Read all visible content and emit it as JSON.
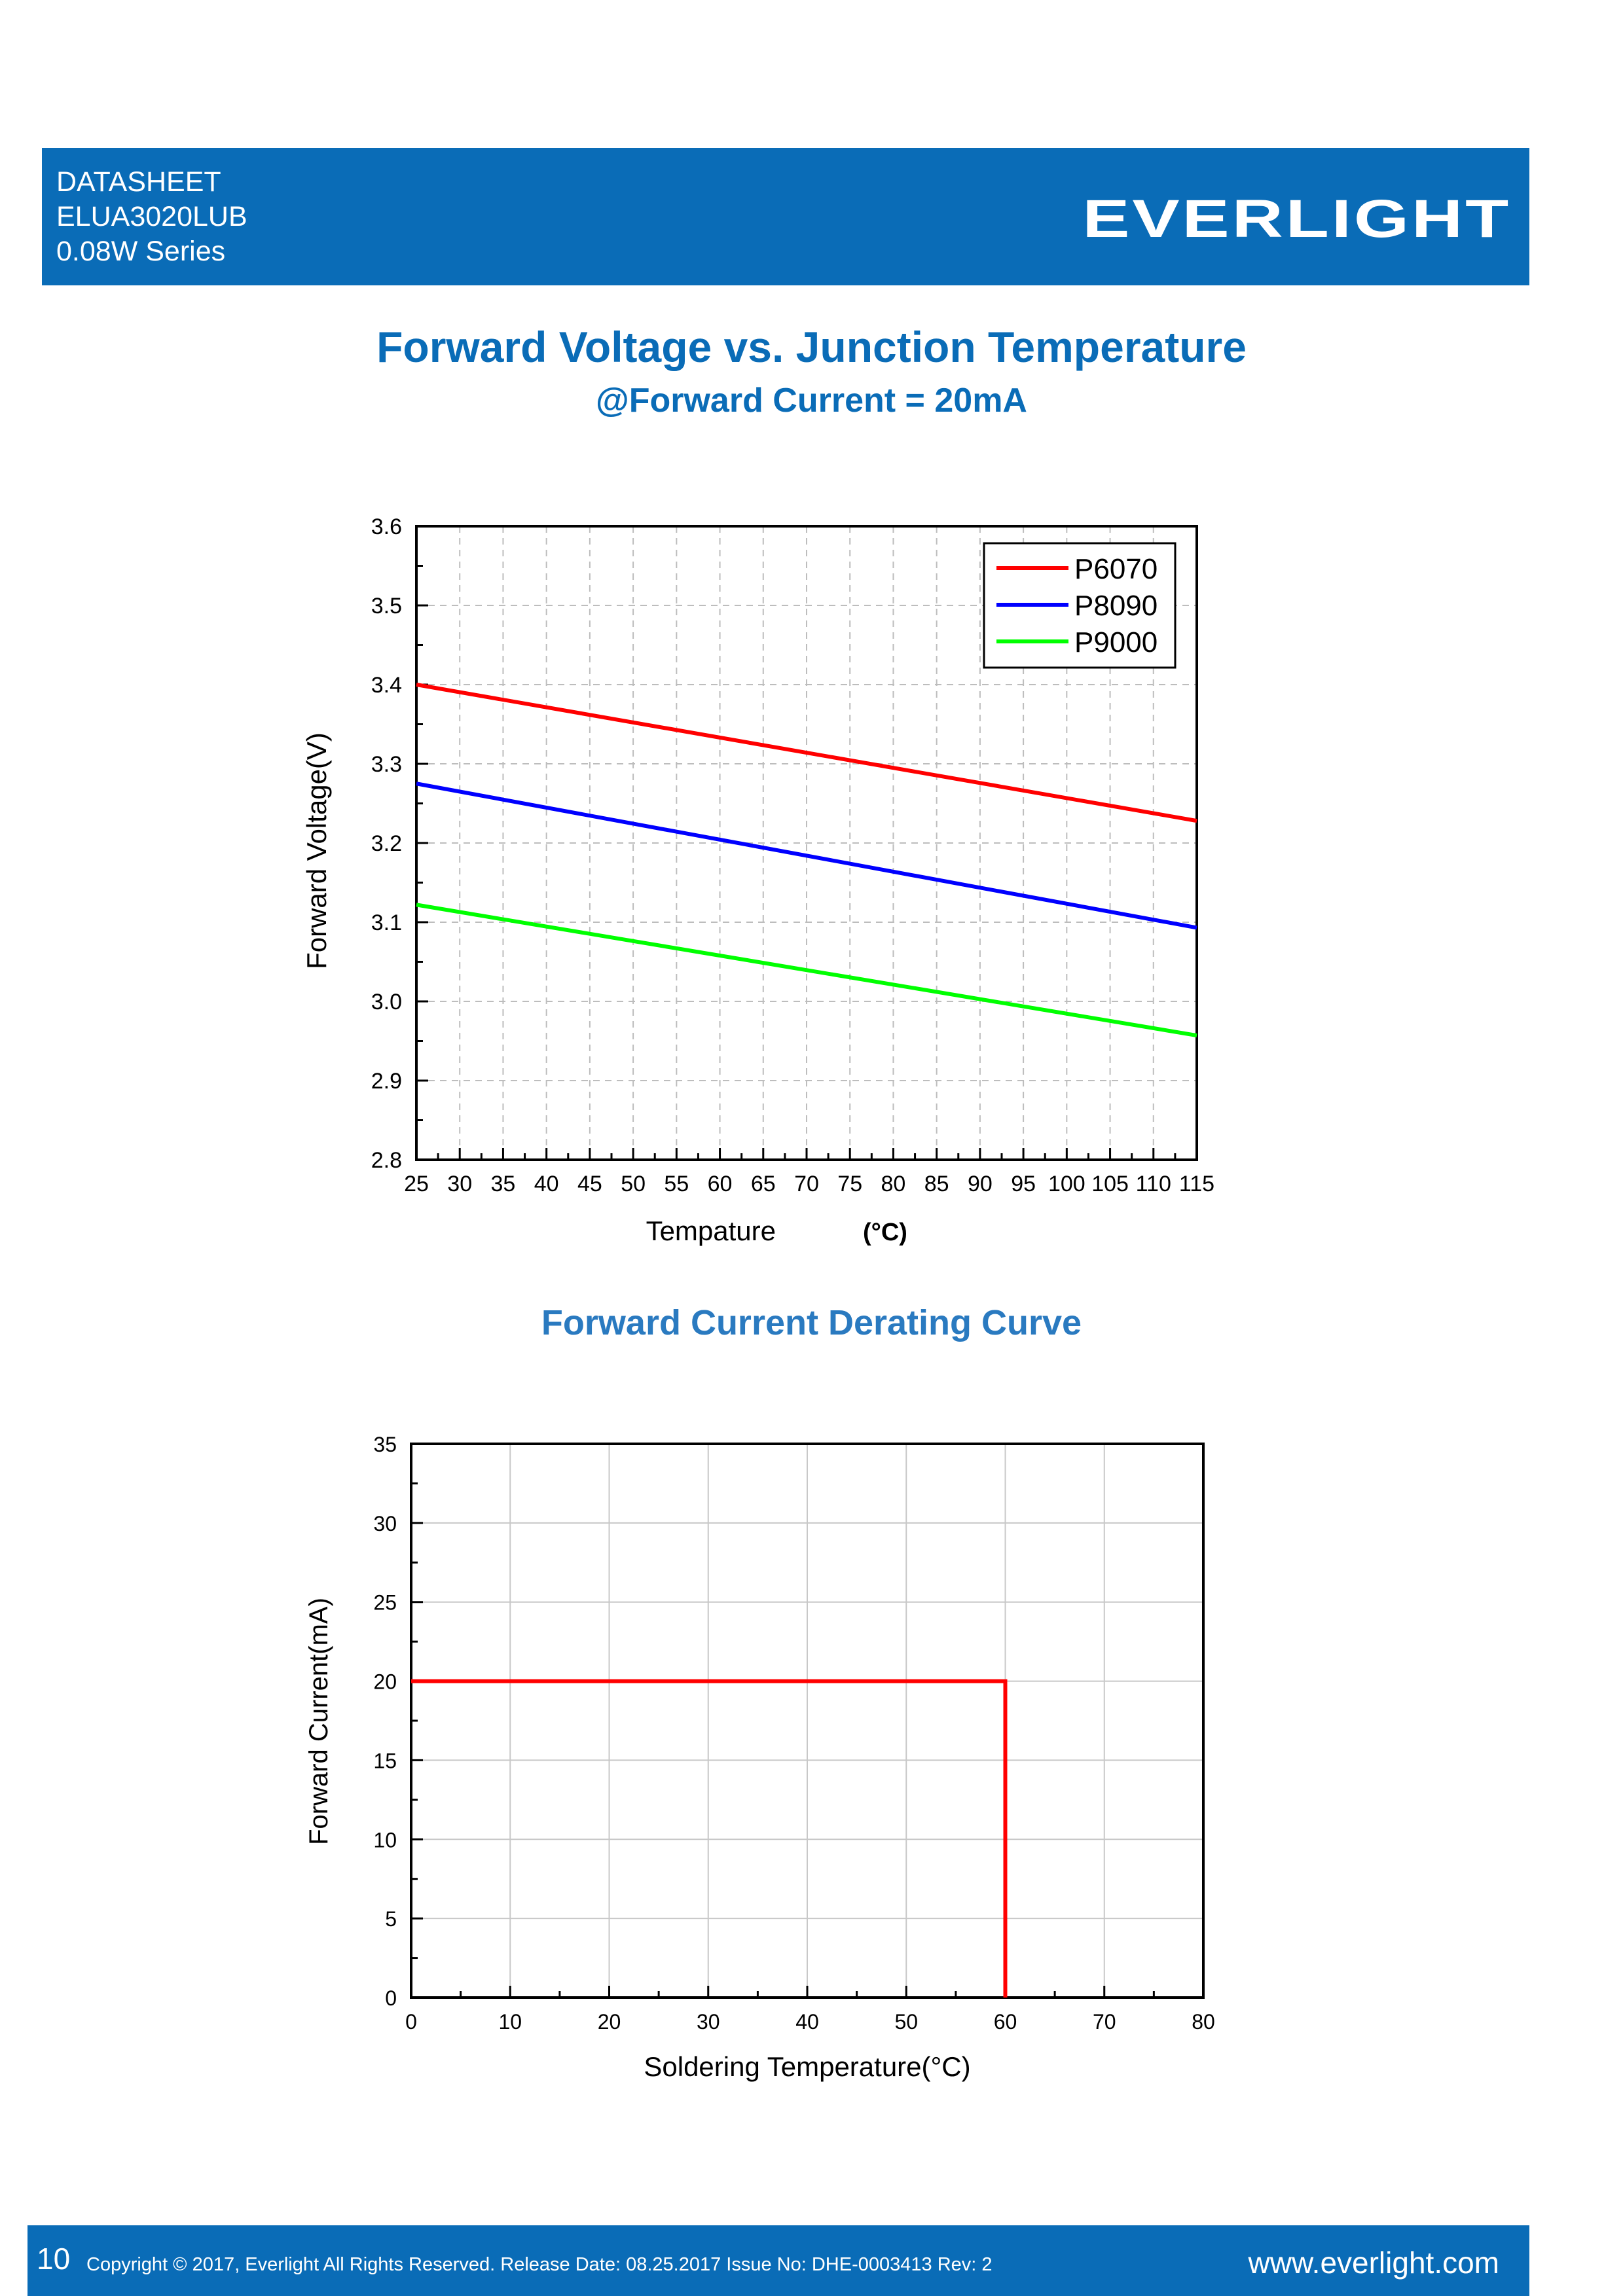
{
  "header": {
    "line1": "DATASHEET",
    "line2": "ELUA3020LUB",
    "line3": "0.08W Series",
    "logo": "EVERLIGHT",
    "bar_color": "#0a6cb7"
  },
  "chart1": {
    "title": "Forward Voltage vs. Junction Temperature",
    "subtitle": "@Forward Current = 20mA"
  },
  "chart2": {
    "title": "Forward Current Derating Curve"
  },
  "footer": {
    "page_number": "10",
    "copyright": "Copyright © 2017, Everlight All Rights Reserved. Release Date: 08.25.2017 Issue No: DHE-0003413 Rev: 2",
    "website": "www.everlight.com"
  },
  "chart_data": [
    {
      "type": "line",
      "xlabel": "Tempature",
      "xlabel_unit": "(°C)",
      "ylabel": "Forward Voltage(V)",
      "xlim": [
        25,
        115
      ],
      "ylim": [
        2.8,
        3.6
      ],
      "xticks": [
        "25",
        "30",
        "35",
        "40",
        "45",
        "50",
        "55",
        "60",
        "65",
        "70",
        "75",
        "80",
        "85",
        "90",
        "95",
        "100",
        "105",
        "110",
        "115"
      ],
      "yticks": [
        "2.8",
        "2.9",
        "3.0",
        "3.1",
        "3.2",
        "3.3",
        "3.4",
        "3.5",
        "3.6"
      ],
      "grid": "dashed",
      "legend_position": "top-right",
      "series": [
        {
          "name": "P6070",
          "color": "#ff0000",
          "x": [
            25,
            115
          ],
          "y": [
            3.4,
            3.228
          ]
        },
        {
          "name": "P8090",
          "color": "#0000ff",
          "x": [
            25,
            115
          ],
          "y": [
            3.275,
            3.093
          ]
        },
        {
          "name": "P9000",
          "color": "#00ff00",
          "x": [
            25,
            115
          ],
          "y": [
            3.122,
            2.957
          ]
        }
      ]
    },
    {
      "type": "line",
      "xlabel": "Soldering Temperature(°C)",
      "ylabel": "Forward Current(mA)",
      "xlim": [
        0,
        80
      ],
      "ylim": [
        0,
        35
      ],
      "xticks": [
        "0",
        "10",
        "20",
        "30",
        "40",
        "50",
        "60",
        "70",
        "80"
      ],
      "yticks": [
        "0",
        "5",
        "10",
        "15",
        "20",
        "25",
        "30",
        "35"
      ],
      "grid": "solid",
      "series": [
        {
          "color": "#ff0000",
          "x": [
            0,
            60,
            60
          ],
          "y": [
            20,
            20,
            0
          ]
        }
      ]
    }
  ]
}
